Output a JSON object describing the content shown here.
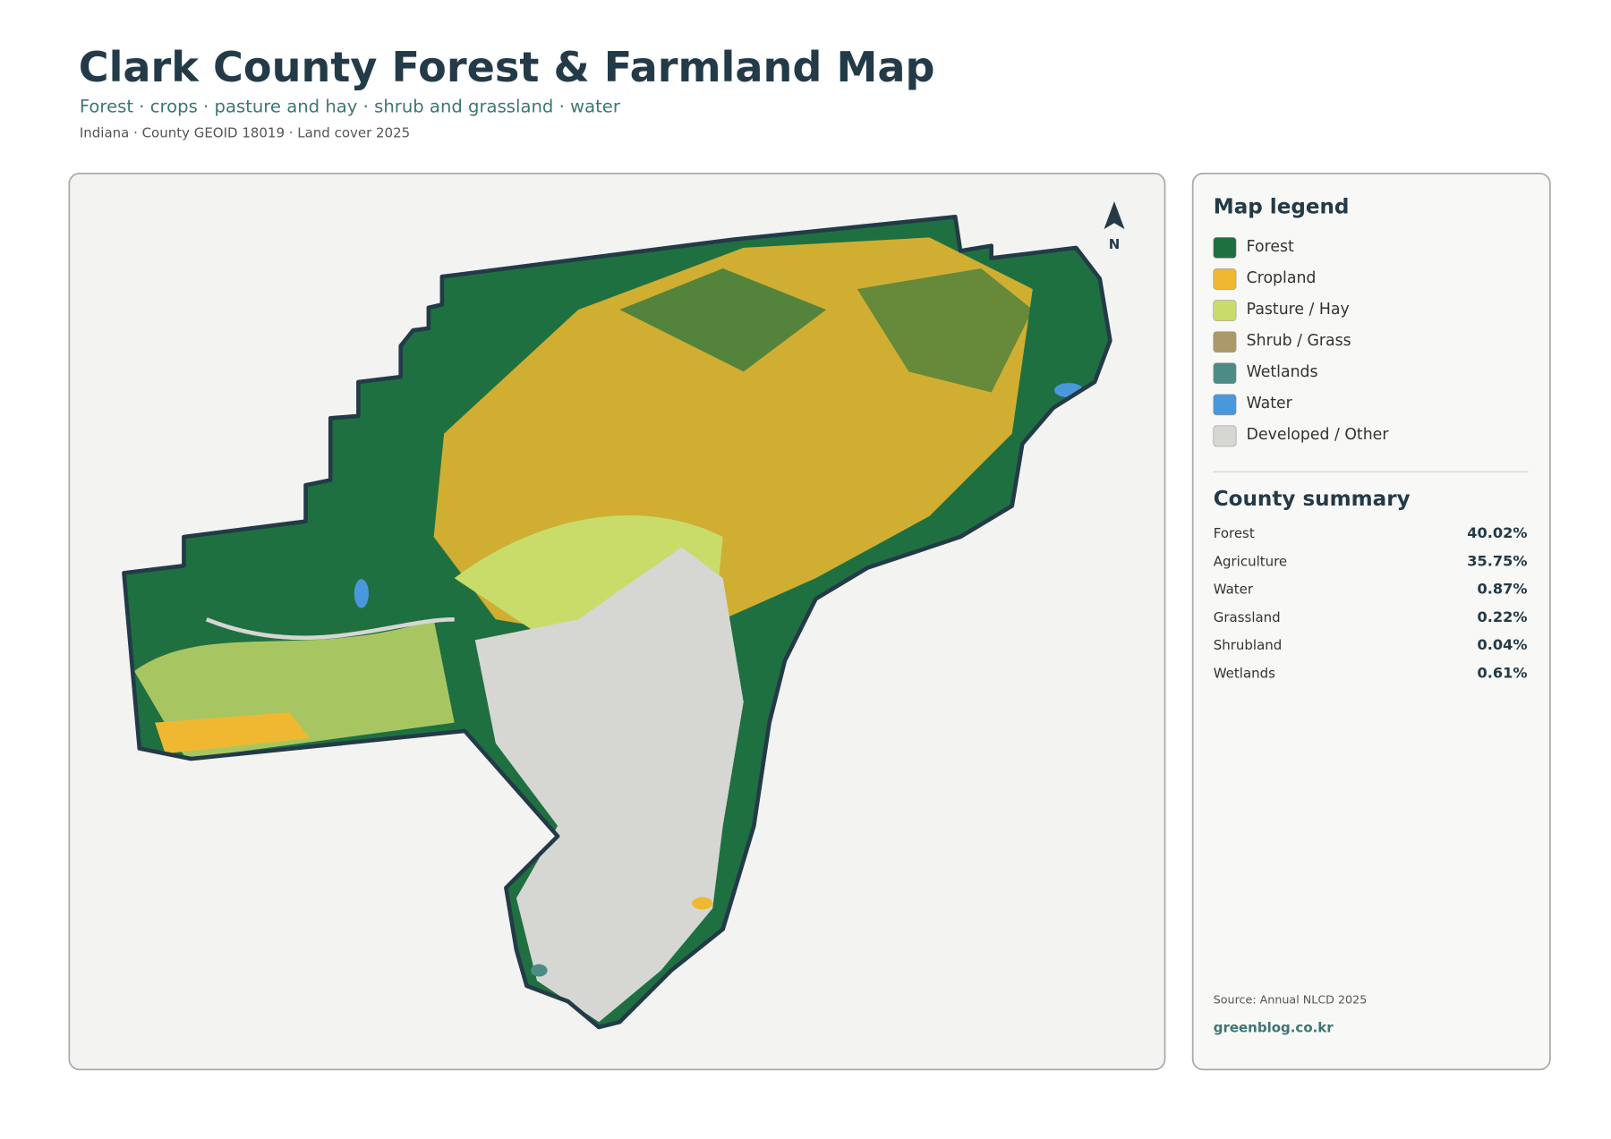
{
  "header": {
    "title": "Clark County Forest & Farmland Map",
    "subtitle": "Forest · crops · pasture and hay · shrub and grassland · water",
    "meta": "Indiana · County GEOID 18019 · Land cover 2025"
  },
  "map": {
    "north_label": "N"
  },
  "legend": {
    "title": "Map legend",
    "items": [
      {
        "label": "Forest",
        "color": "#1f7040"
      },
      {
        "label": "Cropland",
        "color": "#f0b830"
      },
      {
        "label": "Pasture / Hay",
        "color": "#c9dc6a"
      },
      {
        "label": "Shrub / Grass",
        "color": "#ab9a68"
      },
      {
        "label": "Wetlands",
        "color": "#4d8c85"
      },
      {
        "label": "Water",
        "color": "#4a98dc"
      },
      {
        "label": "Developed / Other",
        "color": "#d6d6d3"
      }
    ]
  },
  "summary": {
    "title": "County summary",
    "rows": [
      {
        "label": "Forest",
        "value": "40.02%"
      },
      {
        "label": "Agriculture",
        "value": "35.75%"
      },
      {
        "label": "Water",
        "value": "0.87%"
      },
      {
        "label": "Grassland",
        "value": "0.22%"
      },
      {
        "label": "Shrubland",
        "value": "0.04%"
      },
      {
        "label": "Wetlands",
        "value": "0.61%"
      }
    ]
  },
  "footer": {
    "source": "Source: Annual NLCD 2025",
    "site": "greenblog.co.kr"
  }
}
